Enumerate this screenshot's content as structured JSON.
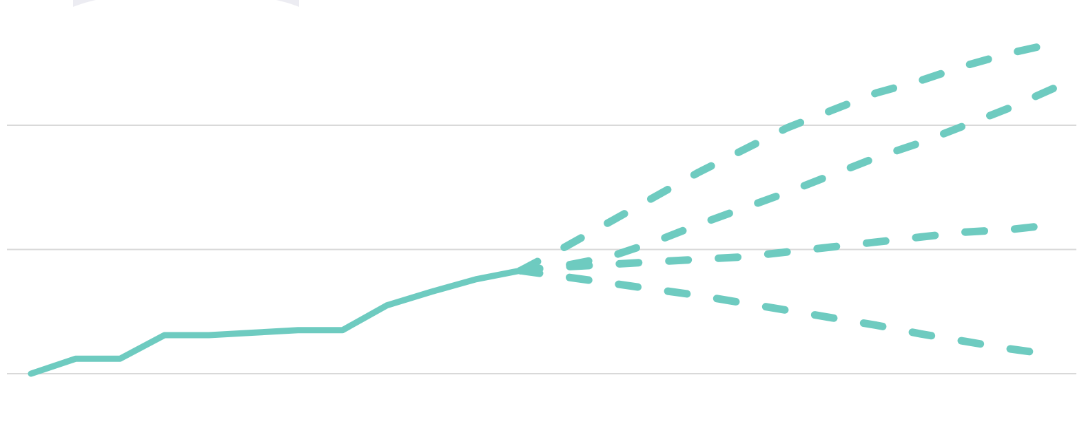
{
  "chart_data": {
    "type": "line",
    "title": "",
    "xlabel": "",
    "ylabel": "",
    "grid": true,
    "gridlines_y": [
      0,
      50,
      100
    ],
    "ylim": [
      -10,
      140
    ],
    "x": [
      0,
      1,
      2,
      3,
      4,
      5,
      6,
      7,
      8,
      9,
      10,
      11,
      12,
      13,
      14,
      15,
      16,
      17,
      18,
      19,
      20,
      21,
      22,
      23
    ],
    "series": [
      {
        "style": "solid",
        "values": [
          0,
          6,
          6,
          15.5,
          15.5,
          16.5,
          17.5,
          17.5,
          27.5,
          33,
          38,
          41.5,
          null,
          null,
          null,
          null,
          null,
          null,
          null,
          null,
          null,
          null,
          null,
          null
        ]
      },
      {
        "style": "dashed",
        "values": [
          null,
          null,
          null,
          null,
          null,
          null,
          null,
          null,
          null,
          null,
          null,
          41.5,
          51,
          61,
          71,
          81,
          90,
          99,
          106,
          113,
          118,
          124,
          129,
          133
        ]
      },
      {
        "style": "dashed",
        "values": [
          null,
          null,
          null,
          null,
          null,
          null,
          null,
          null,
          null,
          null,
          null,
          41.5,
          43.5,
          47,
          53,
          60,
          66.5,
          73,
          80,
          87,
          93,
          100,
          107,
          115
        ]
      },
      {
        "style": "dashed",
        "values": [
          null,
          null,
          null,
          null,
          null,
          null,
          null,
          null,
          null,
          null,
          null,
          41.5,
          43,
          44,
          45,
          46,
          47,
          49,
          51,
          53,
          55,
          57,
          58,
          60
        ]
      },
      {
        "style": "dashed",
        "values": [
          null,
          null,
          null,
          null,
          null,
          null,
          null,
          null,
          null,
          null,
          null,
          41.5,
          39,
          36.5,
          34,
          31.5,
          28.5,
          25.5,
          22.5,
          19.5,
          16,
          13,
          10,
          7.5
        ]
      }
    ],
    "colors": {
      "series": "#6ecbc0",
      "grid": "#d9d9d9",
      "badge": "#ececf2"
    }
  }
}
